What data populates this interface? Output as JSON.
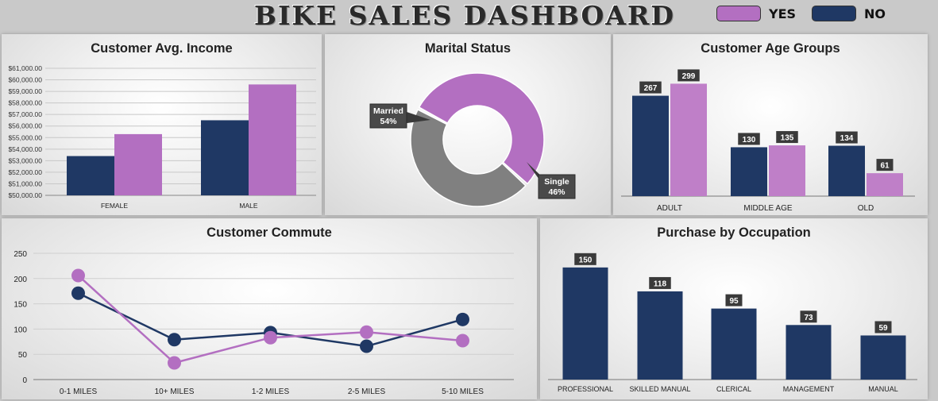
{
  "dashboard": {
    "title": "BIKE SALES DASHBOARD"
  },
  "legend": [
    {
      "label": "YES",
      "color": "#b36fc1"
    },
    {
      "label": "NO",
      "color": "#1f3864"
    }
  ],
  "colors": {
    "yes": "#b36fc1",
    "no": "#1f3864",
    "single": "#808080"
  },
  "chart_data": [
    {
      "id": "income",
      "type": "bar",
      "title": "Customer Avg. Income",
      "categories": [
        "FEMALE",
        "MALE"
      ],
      "series": [
        {
          "name": "NO",
          "values": [
            53400,
            56500
          ]
        },
        {
          "name": "YES",
          "values": [
            55300,
            59600
          ]
        }
      ],
      "ylim": [
        50000,
        61000
      ],
      "yticks": [
        "$50,000.00",
        "$51,000.00",
        "$52,000.00",
        "$53,000.00",
        "$54,000.00",
        "$55,000.00",
        "$56,000.00",
        "$57,000.00",
        "$58,000.00",
        "$59,000.00",
        "$60,000.00",
        "$61,000.00"
      ],
      "grid": true
    },
    {
      "id": "marital",
      "type": "pie",
      "title": "Marital Status",
      "slices": [
        {
          "label": "Married",
          "value": 54,
          "text": "54%"
        },
        {
          "label": "Single",
          "value": 46,
          "text": "46%"
        }
      ]
    },
    {
      "id": "age",
      "type": "bar",
      "title": "Customer Age Groups",
      "categories": [
        "ADULT",
        "MIDDLE AGE",
        "OLD"
      ],
      "series": [
        {
          "name": "NO",
          "values": [
            267,
            130,
            134
          ]
        },
        {
          "name": "YES",
          "values": [
            299,
            135,
            61
          ]
        }
      ],
      "ylim": [
        0,
        340
      ]
    },
    {
      "id": "commute",
      "type": "line",
      "title": "Customer Commute",
      "categories": [
        "0-1 MILES",
        "10+ MILES",
        "1-2 MILES",
        "2-5 MILES",
        "5-10 MILES"
      ],
      "series": [
        {
          "name": "NO",
          "values": [
            171,
            79,
            93,
            66,
            119
          ]
        },
        {
          "name": "YES",
          "values": [
            206,
            33,
            83,
            94,
            77
          ]
        }
      ],
      "ylim": [
        0,
        250
      ],
      "yticks": [
        "0",
        "50",
        "100",
        "150",
        "200",
        "250"
      ],
      "grid": true
    },
    {
      "id": "occupation",
      "type": "bar",
      "title": "Purchase by Occupation",
      "categories": [
        "PROFESSIONAL",
        "SKILLED MANUAL",
        "CLERICAL",
        "MANAGEMENT",
        "MANUAL"
      ],
      "series": [
        {
          "values": [
            150,
            118,
            95,
            73,
            59
          ]
        }
      ],
      "ylim": [
        0,
        170
      ]
    }
  ]
}
